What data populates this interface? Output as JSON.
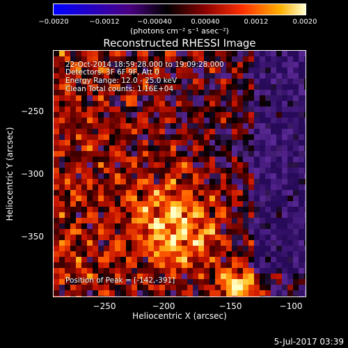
{
  "colorbar": {
    "ticks": [
      "−0.0020",
      "−0.0012",
      "−0.00040",
      "0.00040",
      "0.0012",
      "0.0020"
    ],
    "units": "(photons cm⁻² s⁻¹ asec⁻²)",
    "colors": [
      "#0000ff",
      "#4b0082",
      "#000000",
      "#7a0000",
      "#ff3000",
      "#ffaa00",
      "#ffffc0"
    ]
  },
  "title": "Reconstructed RHESSI Image",
  "annotations": {
    "time_range": "22-Oct-2014 18:59:28.000 to 19:09:28.000",
    "detectors": "Detectors: 3F 6F 9F, Att 0",
    "energy": "Energy Range: 12.0 - 25.0 keV",
    "method": "Clean     Total counts: 1.16E+04",
    "peak": "Position of Peak = [-142,-391]"
  },
  "axes": {
    "xlabel": "Heliocentric X (arcsec)",
    "ylabel": "Heliocentric Y (arcsec)",
    "xticks": [
      "−250",
      "−200",
      "−150",
      "−100"
    ],
    "yticks": [
      "−250",
      "−300",
      "−350"
    ]
  },
  "datestamp": "5-Jul-2017 03:39"
}
